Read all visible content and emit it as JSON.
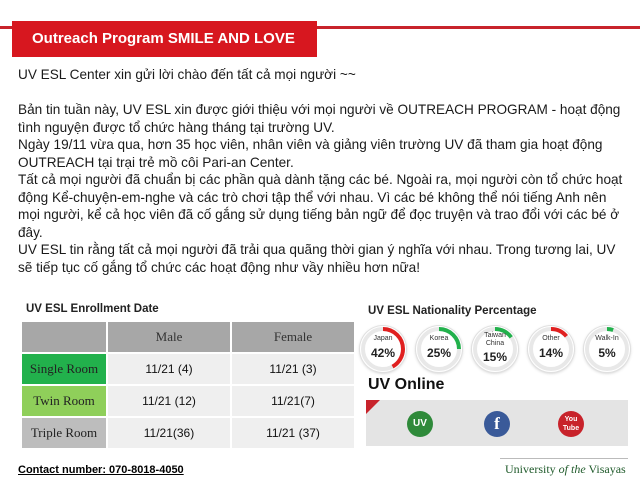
{
  "title": "Outreach Program SMILE AND LOVE",
  "greeting": "UV ESL Center xin gửi lời chào đến tất cả mọi người ~~",
  "paragraphs": [
    "Bản tin tuần này, UV ESL xin được giới thiệu với mọi người về OUTREACH PROGRAM - hoạt động tình nguyện được tổ chức hàng tháng tại trường UV.",
    "Ngày 19/11 vừa qua, hơn 35 học viên, nhân viên và giảng viên trường UV đã tham gia hoạt động OUTREACH tại trại trẻ mồ côi Pari-an Center.",
    "Tất cả mọi người đã chuẩn bị các phần quà dành tặng các bé. Ngoài ra, mọi người còn tổ chức hoạt động Kể-chuyện-em-nghe và các trò chơi tập thể với nhau. Vì các bé không thể nói tiếng Anh nên mọi người, kể cả học viên đã cố gắng sử dụng tiếng bản ngữ để đọc truyện và trao đổi với các bé ở đây.",
    "UV ESL tin rằng tất cả mọi người đã trải qua quãng thời gian ý nghĩa với nhau. Trong tương lai, UV sẽ tiếp tục cố gắng tổ chức các hoạt động như vầy nhiều hơn nữa!"
  ],
  "enrollment": {
    "title": "UV ESL Enrollment Date",
    "columns": [
      "Male",
      "Female"
    ],
    "rows": [
      {
        "label": "Single Room",
        "male": "11/21 (4)",
        "female": "11/21 (3)",
        "color": "#22b14c"
      },
      {
        "label": "Twin Room",
        "male": "11/21 (12)",
        "female": "11/21(7)",
        "color": "#8fcf5a"
      },
      {
        "label": "Triple Room",
        "male": "11/21(36)",
        "female": "11/21 (37)",
        "color": "#bdbdbd"
      }
    ]
  },
  "nationality": {
    "title": "UV ESL Nationality Percentage",
    "items": [
      {
        "label": "Japan",
        "label2": "",
        "pct": "42%",
        "value": 42,
        "color": "#e02020",
        "icon": "japan-badge-icon"
      },
      {
        "label": "Korea",
        "label2": "",
        "pct": "25%",
        "value": 25,
        "color": "#22b14c",
        "icon": "korea-badge-icon"
      },
      {
        "label": "Taiwan",
        "label2": "China",
        "pct": "15%",
        "value": 15,
        "color": "#22b14c",
        "icon": "taiwan-china-badge-icon"
      },
      {
        "label": "Other",
        "label2": "",
        "pct": "14%",
        "value": 14,
        "color": "#e02020",
        "icon": "other-badge-icon"
      },
      {
        "label": "Walk-In",
        "label2": "",
        "pct": "5%",
        "value": 5,
        "color": "#22b14c",
        "icon": "walk-in-badge-icon"
      }
    ]
  },
  "online": {
    "title": "UV Online",
    "uv_icon_text": "UV",
    "fb_icon_text": "f",
    "yt_icon_text": "You Tube"
  },
  "contact": "Contact number: 070-8018-4050",
  "university": {
    "part1": "University ",
    "part2": "of the",
    "part3": " Visayas"
  }
}
